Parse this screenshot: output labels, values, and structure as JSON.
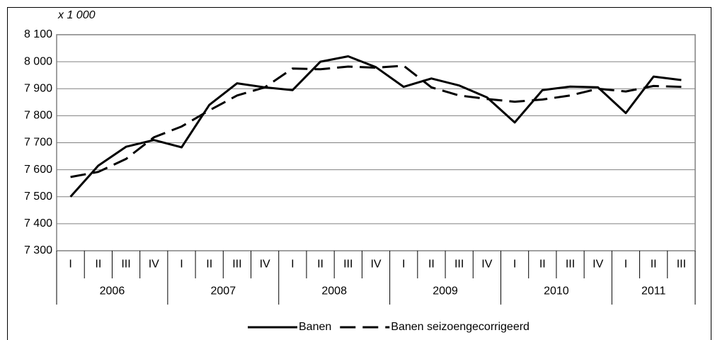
{
  "chart_data": {
    "type": "line",
    "unit_label": "x 1 000",
    "category_groups": [
      {
        "label": "2006",
        "categories": [
          "I",
          "II",
          "III",
          "IV"
        ]
      },
      {
        "label": "2007",
        "categories": [
          "I",
          "II",
          "III",
          "IV"
        ]
      },
      {
        "label": "2008",
        "categories": [
          "I",
          "II",
          "III",
          "IV"
        ]
      },
      {
        "label": "2009",
        "categories": [
          "I",
          "II",
          "III",
          "IV"
        ]
      },
      {
        "label": "2010",
        "categories": [
          "I",
          "II",
          "III",
          "IV"
        ]
      },
      {
        "label": "2011",
        "categories": [
          "I",
          "II",
          "III"
        ]
      }
    ],
    "series": [
      {
        "name": "Banen",
        "color": "#000000",
        "dash": false,
        "values": [
          7500,
          7615,
          7685,
          7710,
          7683,
          7840,
          7920,
          7905,
          7895,
          8000,
          8020,
          7980,
          7907,
          7938,
          7912,
          7868,
          7775,
          7895,
          7908,
          7905,
          7810,
          7945,
          7932
        ]
      },
      {
        "name": "Banen seizoengecorrigeerd",
        "color": "#000000",
        "dash": true,
        "values": [
          7573,
          7592,
          7640,
          7720,
          7760,
          7820,
          7875,
          7905,
          7975,
          7972,
          7982,
          7978,
          7985,
          7905,
          7875,
          7862,
          7852,
          7860,
          7875,
          7900,
          7890,
          7910,
          7907
        ]
      }
    ],
    "ylim": [
      7300,
      8100
    ],
    "yticks": [
      {
        "value": 7300,
        "label": "7 300"
      },
      {
        "value": 7400,
        "label": "7 400"
      },
      {
        "value": 7500,
        "label": "7 500"
      },
      {
        "value": 7600,
        "label": "7 600"
      },
      {
        "value": 7700,
        "label": "7 700"
      },
      {
        "value": 7800,
        "label": "7 800"
      },
      {
        "value": 7900,
        "label": "7 900"
      },
      {
        "value": 8000,
        "label": "8 000"
      },
      {
        "value": 8100,
        "label": "8 100"
      }
    ],
    "grid": true,
    "legend": "bottom"
  }
}
